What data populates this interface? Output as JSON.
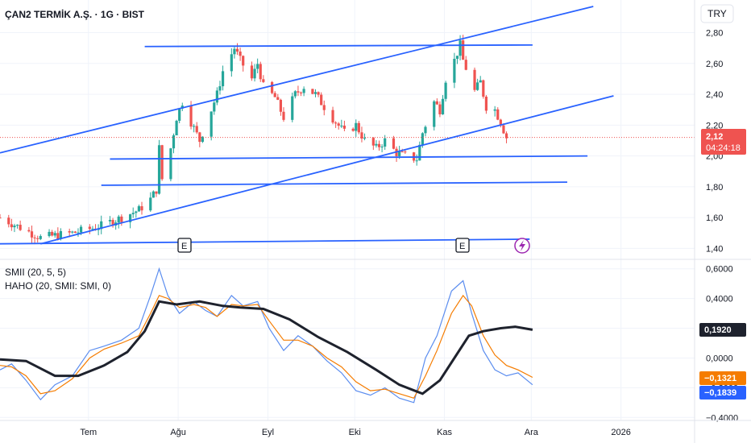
{
  "header": {
    "title": "ÇAN2 TERMİK A.Ş. · 1G · BIST"
  },
  "currency": "TRY",
  "price_badge": {
    "price": "2,12",
    "countdown": "04:24:18",
    "color": "#ef5350"
  },
  "oscillator": {
    "legend_1": "SMII (20, 5, 5)",
    "legend_2": "HAHO (20, SMII: SMI, 0)",
    "badges": [
      {
        "text": "0,1920",
        "bg": "#1e222d",
        "value": 0.192
      },
      {
        "text": "−0,1321",
        "bg": "#f57c00",
        "value": -0.1321
      },
      {
        "text": "−0,1839",
        "bg": "#2962ff",
        "value": -0.1839
      }
    ]
  },
  "events": [
    "E",
    "E"
  ],
  "colors": {
    "up": "#26a69a",
    "down": "#ef5350",
    "trendline": "#2962ff",
    "smi": "#5b8def",
    "signal": "#f57c00",
    "haho": "#1e222d"
  },
  "chart_data": [
    {
      "type": "candlestick",
      "x_ticks": [
        "Tem",
        "Ağu",
        "Eyl",
        "Eki",
        "Kas",
        "Ara",
        "2026"
      ],
      "y_ticks": [
        "2,80",
        "2,60",
        "2,40",
        "2,20",
        "2,00",
        "1,80",
        "1,60",
        "1,40"
      ],
      "ylim": [
        1.35,
        2.97
      ],
      "last_price": 2.12,
      "x_range": [
        "2025-06-06",
        "2026-02-01"
      ],
      "closes": [
        {
          "date": "2025-06-06",
          "c": 1.6
        },
        {
          "date": "2025-06-20",
          "c": 1.47
        },
        {
          "date": "2025-07-01",
          "c": 1.5
        },
        {
          "date": "2025-07-10",
          "c": 1.54
        },
        {
          "date": "2025-07-18",
          "c": 1.6
        },
        {
          "date": "2025-07-24",
          "c": 1.65
        },
        {
          "date": "2025-07-28",
          "c": 1.72
        },
        {
          "date": "2025-07-30",
          "c": 1.78
        },
        {
          "date": "2025-07-31",
          "c": 2.05
        },
        {
          "date": "2025-08-01",
          "c": 1.85
        },
        {
          "date": "2025-08-04",
          "c": 2.05
        },
        {
          "date": "2025-08-06",
          "c": 2.25
        },
        {
          "date": "2025-08-08",
          "c": 2.35
        },
        {
          "date": "2025-08-11",
          "c": 2.22
        },
        {
          "date": "2025-08-14",
          "c": 2.1
        },
        {
          "date": "2025-08-18",
          "c": 2.3
        },
        {
          "date": "2025-08-20",
          "c": 2.4
        },
        {
          "date": "2025-08-22",
          "c": 2.55
        },
        {
          "date": "2025-08-26",
          "c": 2.7
        },
        {
          "date": "2025-08-28",
          "c": 2.62
        },
        {
          "date": "2025-09-01",
          "c": 2.5
        },
        {
          "date": "2025-09-03",
          "c": 2.6
        },
        {
          "date": "2025-09-05",
          "c": 2.45
        },
        {
          "date": "2025-09-09",
          "c": 2.38
        },
        {
          "date": "2025-09-12",
          "c": 2.25
        },
        {
          "date": "2025-09-16",
          "c": 2.4
        },
        {
          "date": "2025-09-19",
          "c": 2.45
        },
        {
          "date": "2025-09-23",
          "c": 2.4
        },
        {
          "date": "2025-09-26",
          "c": 2.32
        },
        {
          "date": "2025-09-30",
          "c": 2.22
        },
        {
          "date": "2025-10-03",
          "c": 2.15
        },
        {
          "date": "2025-10-07",
          "c": 2.2
        },
        {
          "date": "2025-10-10",
          "c": 2.1
        },
        {
          "date": "2025-10-14",
          "c": 2.05
        },
        {
          "date": "2025-10-17",
          "c": 2.1
        },
        {
          "date": "2025-10-21",
          "c": 2.02
        },
        {
          "date": "2025-10-24",
          "c": 2.0
        },
        {
          "date": "2025-10-28",
          "c": 1.98
        },
        {
          "date": "2025-10-30",
          "c": 2.15
        },
        {
          "date": "2025-11-03",
          "c": 2.35
        },
        {
          "date": "2025-11-05",
          "c": 2.3
        },
        {
          "date": "2025-11-07",
          "c": 2.5
        },
        {
          "date": "2025-11-10",
          "c": 2.62
        },
        {
          "date": "2025-11-12",
          "c": 2.72
        },
        {
          "date": "2025-11-13",
          "c": 2.62
        },
        {
          "date": "2025-11-17",
          "c": 2.42
        },
        {
          "date": "2025-11-19",
          "c": 2.48
        },
        {
          "date": "2025-11-21",
          "c": 2.32
        },
        {
          "date": "2025-11-24",
          "c": 2.3
        },
        {
          "date": "2025-11-26",
          "c": 2.22
        },
        {
          "date": "2025-11-28",
          "c": 2.12
        }
      ]
    },
    {
      "type": "line",
      "x_ticks": [
        "Tem",
        "Ağu",
        "Eyl",
        "Eki",
        "Kas",
        "Ara",
        "2026"
      ],
      "y_ticks": [
        "0,6000",
        "0,4000",
        "0,2000",
        "0,0000",
        "−0,2000",
        "−0,4000"
      ],
      "ylim": [
        -0.42,
        0.62
      ],
      "series": [
        {
          "name": "SMII (20, 5, 5)",
          "points": [
            {
              "date": "2025-06-06",
              "v": -0.08
            },
            {
              "date": "2025-06-10",
              "v": -0.04
            },
            {
              "date": "2025-06-15",
              "v": -0.15
            },
            {
              "date": "2025-06-20",
              "v": -0.28
            },
            {
              "date": "2025-06-25",
              "v": -0.18
            },
            {
              "date": "2025-07-01",
              "v": -0.12
            },
            {
              "date": "2025-07-07",
              "v": 0.05
            },
            {
              "date": "2025-07-12",
              "v": 0.08
            },
            {
              "date": "2025-07-18",
              "v": 0.12
            },
            {
              "date": "2025-07-24",
              "v": 0.2
            },
            {
              "date": "2025-07-28",
              "v": 0.42
            },
            {
              "date": "2025-07-31",
              "v": 0.6
            },
            {
              "date": "2025-08-03",
              "v": 0.42
            },
            {
              "date": "2025-08-07",
              "v": 0.3
            },
            {
              "date": "2025-08-12",
              "v": 0.38
            },
            {
              "date": "2025-08-16",
              "v": 0.32
            },
            {
              "date": "2025-08-20",
              "v": 0.28
            },
            {
              "date": "2025-08-25",
              "v": 0.42
            },
            {
              "date": "2025-08-29",
              "v": 0.35
            },
            {
              "date": "2025-09-03",
              "v": 0.38
            },
            {
              "date": "2025-09-07",
              "v": 0.2
            },
            {
              "date": "2025-09-12",
              "v": 0.05
            },
            {
              "date": "2025-09-17",
              "v": 0.15
            },
            {
              "date": "2025-09-22",
              "v": 0.08
            },
            {
              "date": "2025-09-27",
              "v": -0.02
            },
            {
              "date": "2025-10-02",
              "v": -0.1
            },
            {
              "date": "2025-10-07",
              "v": -0.22
            },
            {
              "date": "2025-10-12",
              "v": -0.25
            },
            {
              "date": "2025-10-17",
              "v": -0.2
            },
            {
              "date": "2025-10-22",
              "v": -0.27
            },
            {
              "date": "2025-10-27",
              "v": -0.3
            },
            {
              "date": "2025-10-31",
              "v": 0.0
            },
            {
              "date": "2025-11-04",
              "v": 0.15
            },
            {
              "date": "2025-11-09",
              "v": 0.45
            },
            {
              "date": "2025-11-13",
              "v": 0.52
            },
            {
              "date": "2025-11-16",
              "v": 0.3
            },
            {
              "date": "2025-11-20",
              "v": 0.05
            },
            {
              "date": "2025-11-24",
              "v": -0.08
            },
            {
              "date": "2025-11-28",
              "v": -0.12
            },
            {
              "date": "2025-12-02",
              "v": -0.1
            },
            {
              "date": "2025-12-07",
              "v": -0.18
            }
          ]
        },
        {
          "name": "HAHO (20, SMII: SMI, 0)",
          "points": [
            {
              "date": "2025-06-06",
              "v": -0.05
            },
            {
              "date": "2025-06-10",
              "v": -0.06
            },
            {
              "date": "2025-06-15",
              "v": -0.12
            },
            {
              "date": "2025-06-20",
              "v": -0.24
            },
            {
              "date": "2025-06-25",
              "v": -0.22
            },
            {
              "date": "2025-07-01",
              "v": -0.14
            },
            {
              "date": "2025-07-07",
              "v": 0.0
            },
            {
              "date": "2025-07-12",
              "v": 0.06
            },
            {
              "date": "2025-07-18",
              "v": 0.1
            },
            {
              "date": "2025-07-24",
              "v": 0.15
            },
            {
              "date": "2025-07-28",
              "v": 0.3
            },
            {
              "date": "2025-07-31",
              "v": 0.42
            },
            {
              "date": "2025-08-03",
              "v": 0.4
            },
            {
              "date": "2025-08-07",
              "v": 0.34
            },
            {
              "date": "2025-08-12",
              "v": 0.36
            },
            {
              "date": "2025-08-16",
              "v": 0.34
            },
            {
              "date": "2025-08-20",
              "v": 0.28
            },
            {
              "date": "2025-08-25",
              "v": 0.36
            },
            {
              "date": "2025-08-29",
              "v": 0.35
            },
            {
              "date": "2025-09-03",
              "v": 0.36
            },
            {
              "date": "2025-09-07",
              "v": 0.25
            },
            {
              "date": "2025-09-12",
              "v": 0.12
            },
            {
              "date": "2025-09-17",
              "v": 0.12
            },
            {
              "date": "2025-09-22",
              "v": 0.08
            },
            {
              "date": "2025-09-27",
              "v": 0.0
            },
            {
              "date": "2025-10-02",
              "v": -0.06
            },
            {
              "date": "2025-10-07",
              "v": -0.16
            },
            {
              "date": "2025-10-12",
              "v": -0.22
            },
            {
              "date": "2025-10-17",
              "v": -0.21
            },
            {
              "date": "2025-10-22",
              "v": -0.24
            },
            {
              "date": "2025-10-27",
              "v": -0.27
            },
            {
              "date": "2025-10-31",
              "v": -0.12
            },
            {
              "date": "2025-11-04",
              "v": 0.05
            },
            {
              "date": "2025-11-09",
              "v": 0.3
            },
            {
              "date": "2025-11-13",
              "v": 0.42
            },
            {
              "date": "2025-11-16",
              "v": 0.35
            },
            {
              "date": "2025-11-20",
              "v": 0.15
            },
            {
              "date": "2025-11-24",
              "v": 0.02
            },
            {
              "date": "2025-11-28",
              "v": -0.05
            },
            {
              "date": "2025-12-02",
              "v": -0.08
            },
            {
              "date": "2025-12-07",
              "v": -0.13
            }
          ]
        },
        {
          "points": [
            {
              "date": "2025-06-06",
              "v": -0.01
            },
            {
              "date": "2025-06-15",
              "v": -0.02
            },
            {
              "date": "2025-06-25",
              "v": -0.12
            },
            {
              "date": "2025-07-03",
              "v": -0.12
            },
            {
              "date": "2025-07-12",
              "v": -0.05
            },
            {
              "date": "2025-07-20",
              "v": 0.04
            },
            {
              "date": "2025-07-26",
              "v": 0.18
            },
            {
              "date": "2025-07-31",
              "v": 0.38
            },
            {
              "date": "2025-08-06",
              "v": 0.36
            },
            {
              "date": "2025-08-14",
              "v": 0.38
            },
            {
              "date": "2025-08-22",
              "v": 0.35
            },
            {
              "date": "2025-08-28",
              "v": 0.34
            },
            {
              "date": "2025-09-05",
              "v": 0.33
            },
            {
              "date": "2025-09-14",
              "v": 0.26
            },
            {
              "date": "2025-09-24",
              "v": 0.14
            },
            {
              "date": "2025-10-04",
              "v": 0.04
            },
            {
              "date": "2025-10-14",
              "v": -0.08
            },
            {
              "date": "2025-10-22",
              "v": -0.18
            },
            {
              "date": "2025-10-30",
              "v": -0.24
            },
            {
              "date": "2025-11-05",
              "v": -0.15
            },
            {
              "date": "2025-11-10",
              "v": 0.0
            },
            {
              "date": "2025-11-15",
              "v": 0.15
            },
            {
              "date": "2025-11-20",
              "v": 0.18
            },
            {
              "date": "2025-11-26",
              "v": 0.2
            },
            {
              "date": "2025-12-01",
              "v": 0.21
            },
            {
              "date": "2025-12-07",
              "v": 0.19
            }
          ]
        }
      ]
    }
  ]
}
